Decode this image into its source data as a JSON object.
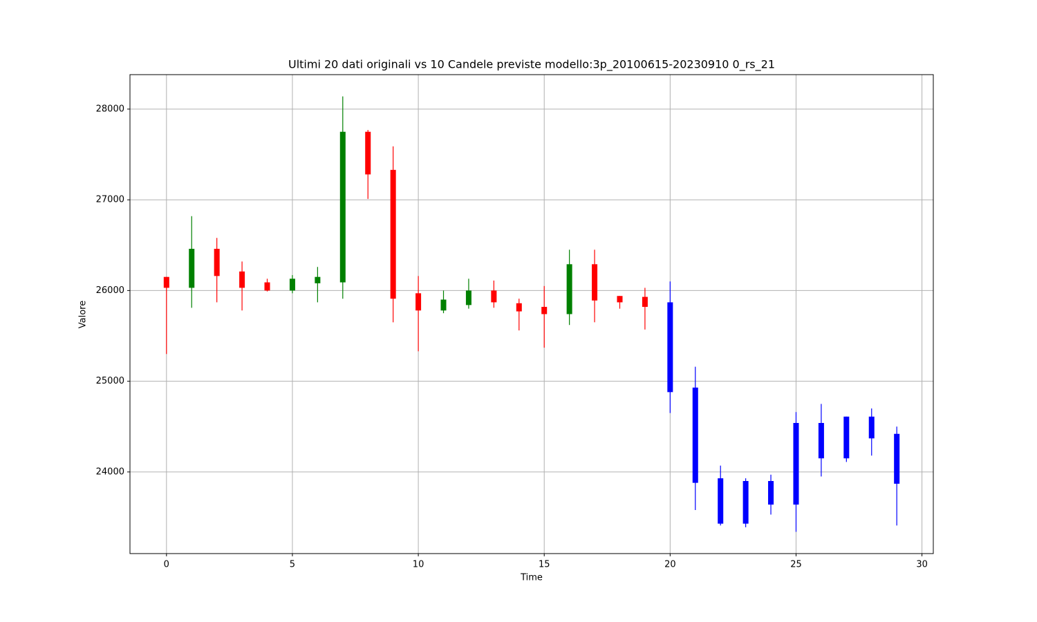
{
  "chart_data": {
    "type": "candlestick",
    "title": "Ultimi 20 dati originali vs 10 Candele previste modello:3p_20100615-20230910 0_rs_21",
    "x_label": "Time",
    "y_label": "Valore",
    "x": [
      0,
      1,
      2,
      3,
      4,
      5,
      6,
      7,
      8,
      9,
      10,
      11,
      12,
      13,
      14,
      15,
      16,
      17,
      18,
      19,
      20,
      21,
      22,
      23,
      24,
      25,
      26,
      27,
      28,
      29
    ],
    "open": [
      26150,
      26030,
      26460,
      26210,
      26090,
      26000,
      26080,
      26090,
      27750,
      27330,
      25970,
      25780,
      25840,
      26000,
      25860,
      25820,
      25740,
      26290,
      25940,
      25930,
      25870,
      24930,
      23930,
      23900,
      23900,
      24540,
      24540,
      24150,
      24610,
      24420
    ],
    "high": [
      26150,
      26820,
      26580,
      26320,
      26130,
      26170,
      26260,
      28140,
      27770,
      27590,
      26160,
      26000,
      26130,
      26110,
      25910,
      26050,
      26450,
      26450,
      25940,
      26030,
      26100,
      25160,
      24070,
      23930,
      23970,
      24660,
      24750,
      24610,
      24700,
      24500
    ],
    "low": [
      25300,
      25810,
      25870,
      25780,
      25990,
      25970,
      25870,
      25910,
      27010,
      25650,
      25330,
      25750,
      25800,
      25810,
      25560,
      25370,
      25620,
      25650,
      25800,
      25570,
      24650,
      23580,
      23410,
      23390,
      23530,
      23340,
      23950,
      24110,
      24180,
      23410
    ],
    "close": [
      26030,
      26460,
      26160,
      26030,
      26000,
      26130,
      26150,
      27750,
      27280,
      25910,
      25780,
      25900,
      26000,
      25870,
      25770,
      25740,
      26290,
      25890,
      25870,
      25820,
      24880,
      23880,
      23430,
      23430,
      23640,
      23640,
      24150,
      24610,
      24370,
      23870
    ],
    "colors": [
      "red",
      "green",
      "red",
      "red",
      "red",
      "green",
      "green",
      "green",
      "red",
      "red",
      "red",
      "green",
      "green",
      "red",
      "red",
      "red",
      "green",
      "red",
      "red",
      "red",
      "blue",
      "blue",
      "blue",
      "blue",
      "blue",
      "blue",
      "blue",
      "blue",
      "blue",
      "blue"
    ],
    "xlim": [
      -1.45,
      30.45
    ],
    "ylim": [
      23100,
      28380
    ],
    "xticks": [
      0,
      5,
      10,
      15,
      20,
      25,
      30
    ],
    "yticks": [
      24000,
      25000,
      26000,
      27000,
      28000
    ],
    "grid": true
  }
}
